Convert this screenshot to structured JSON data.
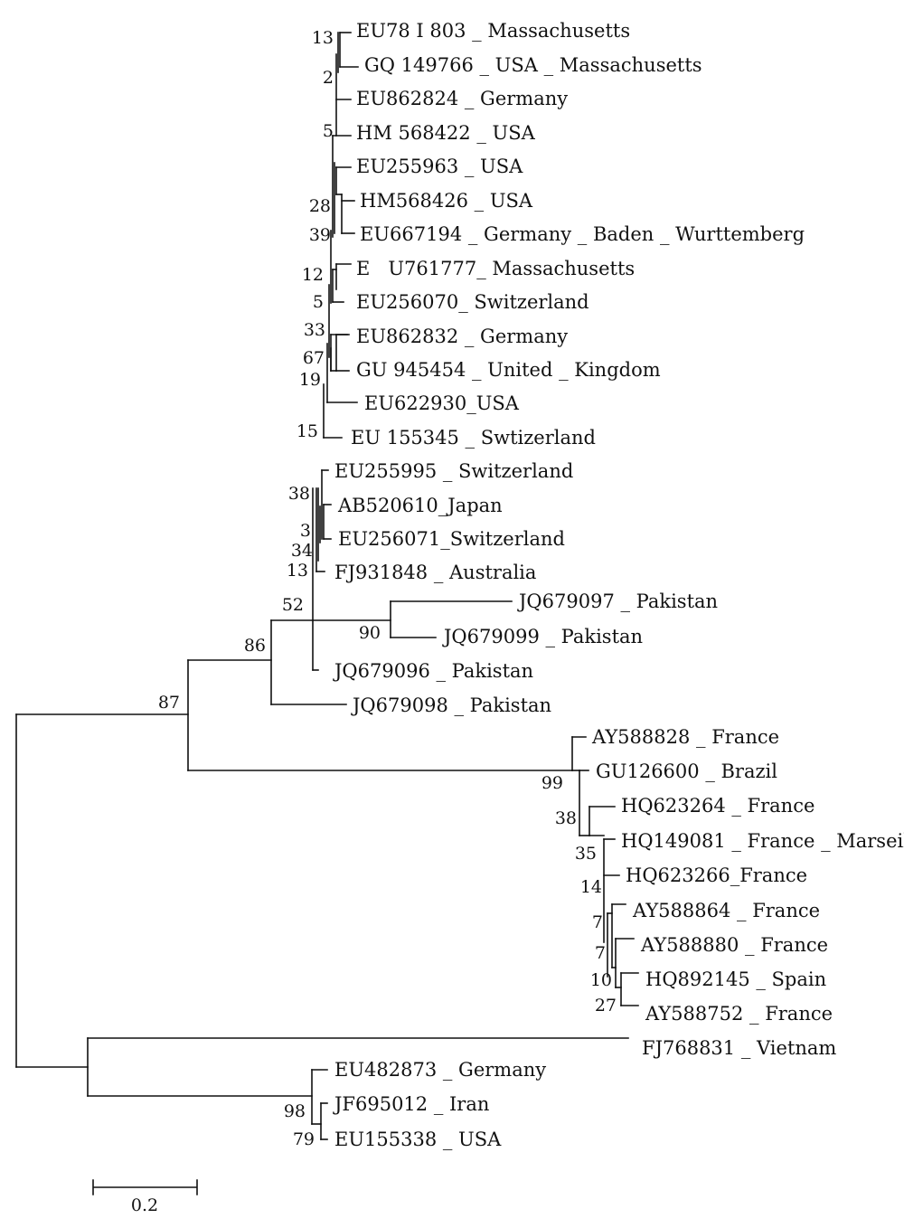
{
  "figure": {
    "type": "phylogenetic_tree",
    "scale_bar_label": "0.2"
  },
  "taxa": [
    "EU78 I 803 _ Massachusetts",
    "GQ 149766 _ USA _ Massachusetts",
    "EU862824 _ Germany",
    "HM 568422 _ USA",
    "EU255963 _ USA",
    "HM568426 _ USA",
    "EU667194 _ Germany _ Baden _ Wurttemberg",
    "E   U761777_ Massachusetts",
    "EU256070_ Switzerland",
    "EU862832 _ Germany",
    "GU 945454 _ United _ Kingdom",
    "EU622930_USA",
    "EU 155345 _ Swtizerland",
    "EU255995 _ Switzerland",
    "AB520610_Japan",
    "EU256071_Switzerland",
    "FJ931848 _ Australia",
    "JQ679097 _ Pakistan",
    "JQ679099 _ Pakistan",
    "JQ679096 _ Pakistan",
    "JQ679098 _ Pakistan",
    "AY588828 _ France",
    "GU126600 _ Brazil",
    "HQ623264 _ France",
    "HQ149081 _ France _ Marseil",
    "HQ623266_France",
    "AY588864 _ France",
    "AY588880 _ France",
    "HQ892145 _ Spain",
    "AY588752 _ France",
    "FJ768831 _ Vietnam",
    "EU482873 _ Germany",
    "JF695012 _ Iran",
    "EU155338 _ USA"
  ],
  "bootstrap_values": [
    "13",
    "2",
    "5",
    "28",
    "39",
    "12",
    "5",
    "33",
    "67",
    "19",
    "15",
    "38",
    "3",
    "34",
    "13",
    "52",
    "90",
    "86",
    "87",
    "99",
    "38",
    "35",
    "14",
    "7",
    "7",
    "10",
    "27",
    "98",
    "79"
  ]
}
